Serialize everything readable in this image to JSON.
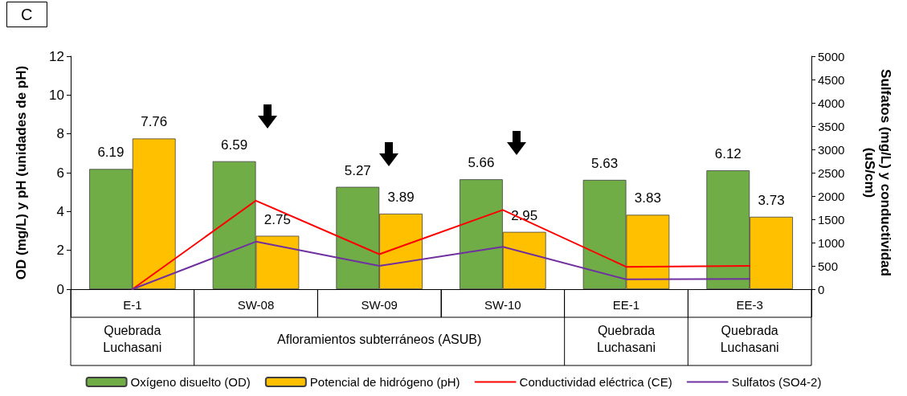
{
  "chart_data": {
    "type": "bar",
    "title": "C",
    "categories": [
      "E-1",
      "SW-08",
      "SW-09",
      "SW-10",
      "EE-1",
      "EE-3"
    ],
    "ylabel": "OD (mg/L) y pH (unidades de pH)",
    "y2label": "Sulfatos (mg/L) y conductividad\n(uS/cm)",
    "ylim": [
      0,
      12
    ],
    "yticks": [
      0,
      2,
      4,
      6,
      8,
      10,
      12
    ],
    "y2lim": [
      0,
      5000
    ],
    "y2ticks": [
      0,
      500,
      1000,
      1500,
      2000,
      2500,
      3000,
      3500,
      4000,
      4500,
      5000
    ],
    "series": [
      {
        "name": "Oxígeno disuelto (OD)",
        "color": "#70ad47",
        "values": [
          6.19,
          6.59,
          5.27,
          5.66,
          5.63,
          6.12
        ],
        "value_labels": [
          "6.19",
          "6.59",
          "5.27",
          "5.66",
          "5.63",
          "6.12"
        ]
      },
      {
        "name": "Potencial de hidrógeno (pH)",
        "color": "#ffc000",
        "values": [
          7.76,
          2.75,
          3.89,
          2.95,
          3.83,
          3.73
        ],
        "value_labels": [
          "7.76",
          "2.75",
          "3.89",
          "2.95",
          "3.83",
          "3.73"
        ]
      },
      {
        "name": "Conductividad eléctrica (CE)",
        "color": "#ff0000",
        "type": "line",
        "axis": "y2",
        "values": [
          0,
          1900,
          750,
          1700,
          480,
          500
        ]
      },
      {
        "name": "Sulfatos (SO4-2)",
        "color": "#7030a0",
        "type": "line",
        "axis": "y2",
        "values": [
          0,
          1020,
          500,
          910,
          210,
          220
        ]
      }
    ],
    "annotations": [
      "Quebrada\nLuchasani",
      "Afloramientos subterráneos (ASUB)",
      "Quebrada\nLuchasani",
      "Quebrada\nLuchasani"
    ],
    "grid": false,
    "legend": "bottom",
    "marker": "none",
    "line_style": "solid"
  }
}
